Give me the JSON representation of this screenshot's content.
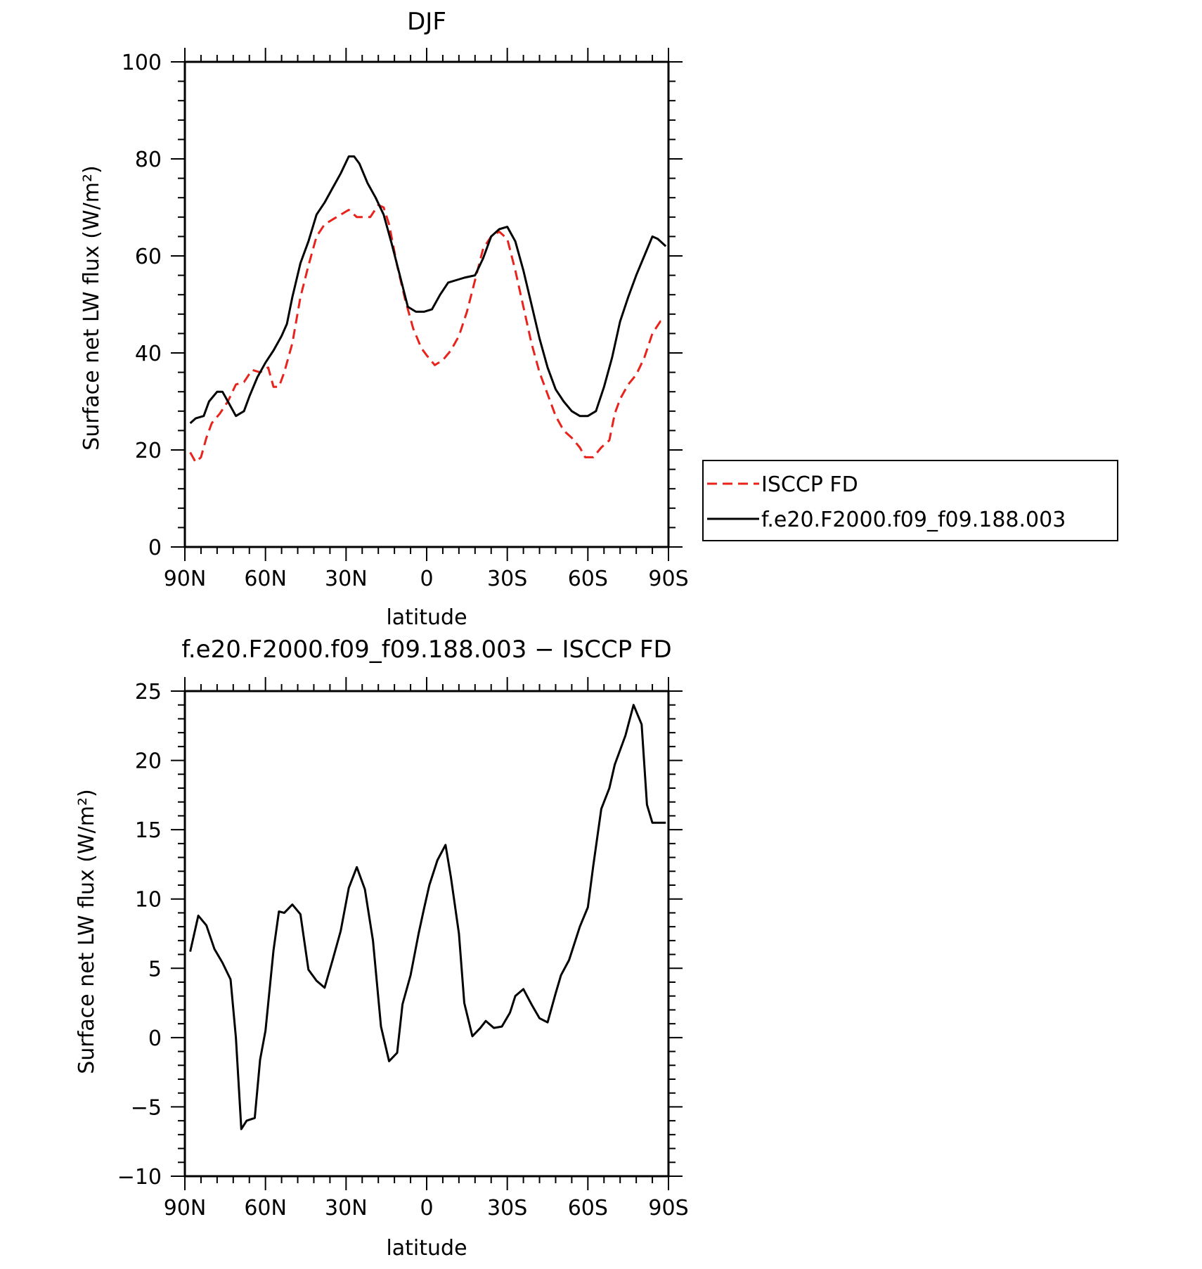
{
  "chart_data": [
    {
      "type": "line",
      "title": "DJF",
      "xlabel": "latitude",
      "ylabel": "Surface net LW flux (W/m²)",
      "xlim": [
        90,
        -90
      ],
      "ylim": [
        0,
        100
      ],
      "xticks": [
        90,
        60,
        30,
        0,
        -30,
        -60,
        -90
      ],
      "xtick_labels": [
        "90N",
        "60N",
        "30N",
        "0",
        "30S",
        "60S",
        "90S"
      ],
      "yticks": [
        0,
        20,
        40,
        60,
        80,
        100
      ],
      "ytick_labels": [
        "0",
        "20",
        "40",
        "60",
        "80",
        "100"
      ],
      "grid": false,
      "legend_position": "right",
      "series": [
        {
          "name": "ISCCP FD",
          "color": "#e8231c",
          "dash": "dashed",
          "x": [
            88,
            86,
            84,
            82,
            80,
            77,
            74,
            71,
            68,
            65,
            62,
            59,
            57,
            55,
            53,
            50,
            47,
            44,
            41,
            38,
            35,
            32,
            29,
            26,
            24,
            21,
            18,
            16,
            14,
            11,
            8,
            5,
            2,
            0,
            -3,
            -6,
            -9,
            -12,
            -15,
            -18,
            -21,
            -24,
            -27,
            -30,
            -33,
            -36,
            -39,
            -42,
            -45,
            -48,
            -51,
            -54,
            -57,
            -59,
            -60,
            -62,
            -65,
            -68,
            -70,
            -72,
            -75,
            -78,
            -81,
            -84,
            -87,
            -89
          ],
          "y": [
            19.5,
            17.5,
            18.5,
            22.5,
            25.5,
            27.5,
            30.0,
            33.5,
            34.0,
            36.5,
            36.0,
            37.0,
            33.0,
            33.0,
            36.0,
            42.0,
            51.5,
            58.0,
            64.0,
            66.5,
            67.5,
            68.5,
            69.5,
            68.0,
            68.0,
            68.0,
            70.5,
            70.0,
            66.5,
            58.0,
            51.0,
            45.0,
            41.0,
            39.5,
            37.5,
            38.5,
            40.5,
            43.5,
            48.5,
            55.0,
            61.5,
            64.0,
            65.0,
            63.5,
            57.0,
            49.5,
            42.0,
            36.0,
            31.5,
            27.0,
            24.0,
            22.5,
            20.5,
            18.5,
            18.5,
            18.5,
            20.5,
            22.0,
            27.5,
            30.5,
            33.5,
            35.5,
            39.0,
            44.0,
            46.5,
            46.5
          ]
        },
        {
          "name": "f.e20.F2000.f09_f09.188.003",
          "color": "#000000",
          "dash": "solid",
          "x": [
            88,
            86,
            83,
            81,
            78,
            76,
            74,
            71,
            68,
            66,
            63,
            60,
            57,
            54,
            52,
            50,
            47,
            44,
            41,
            38,
            35,
            32,
            29,
            27,
            25,
            22,
            19,
            16,
            13,
            10,
            7,
            4,
            1,
            -2,
            -5,
            -8,
            -11,
            -14,
            -18,
            -21,
            -24,
            -27,
            -30,
            -33,
            -36,
            -39,
            -42,
            -45,
            -48,
            -51,
            -54,
            -57,
            -60,
            -63,
            -66,
            -69,
            -72,
            -75,
            -78,
            -81,
            -84,
            -86,
            -89
          ],
          "y": [
            25.5,
            26.5,
            27.0,
            30.0,
            32.0,
            32.0,
            30.0,
            27.0,
            28.0,
            31.0,
            35.0,
            38.0,
            40.5,
            43.5,
            46.0,
            51.5,
            58.5,
            63.0,
            68.5,
            71.0,
            74.0,
            77.0,
            80.5,
            80.5,
            79.0,
            75.0,
            72.0,
            68.5,
            62.5,
            56.0,
            49.5,
            48.5,
            48.5,
            49.0,
            52.0,
            54.5,
            55.0,
            55.5,
            56.0,
            59.5,
            64.0,
            65.5,
            66.0,
            63.0,
            57.0,
            50.0,
            43.0,
            37.0,
            32.5,
            30.0,
            28.0,
            27.0,
            27.0,
            28.0,
            33.0,
            39.0,
            46.5,
            51.5,
            56.0,
            60.0,
            64.0,
            63.5,
            62.0
          ]
        }
      ]
    },
    {
      "type": "line",
      "title": "f.e20.F2000.f09_f09.188.003 − ISCCP FD",
      "xlabel": "latitude",
      "ylabel": "Surface net LW flux (W/m²)",
      "xlim": [
        90,
        -90
      ],
      "ylim": [
        -10,
        25
      ],
      "xticks": [
        90,
        60,
        30,
        0,
        -30,
        -60,
        -90
      ],
      "xtick_labels": [
        "90N",
        "60N",
        "30N",
        "0",
        "30S",
        "60S",
        "90S"
      ],
      "yticks": [
        -10,
        -5,
        0,
        5,
        10,
        15,
        20,
        25
      ],
      "ytick_labels": [
        "−10",
        "−5",
        "0",
        "5",
        "10",
        "15",
        "20",
        "25"
      ],
      "grid": false,
      "series": [
        {
          "color": "#000000",
          "dash": "solid",
          "x": [
            88,
            85,
            82,
            79,
            76,
            73,
            71,
            69,
            67,
            64,
            62,
            60,
            57,
            55,
            53,
            50,
            47,
            44,
            41,
            38,
            35,
            32,
            29,
            26,
            23,
            20,
            17,
            14,
            11,
            9,
            6,
            3,
            1,
            -1,
            -4,
            -7,
            -9,
            -12,
            -14,
            -17,
            -20,
            -22,
            -25,
            -28,
            -31,
            -33,
            -36,
            -39,
            -42,
            -45,
            -48,
            -50,
            -53,
            -57,
            -60,
            -62,
            -65,
            -68,
            -70,
            -74,
            -77,
            -80,
            -82,
            -84,
            -86,
            -89
          ],
          "y": [
            6.2,
            8.8,
            8.1,
            6.4,
            5.4,
            4.2,
            0.0,
            -6.6,
            -6.0,
            -5.8,
            -1.6,
            0.5,
            6.3,
            9.1,
            9.0,
            9.6,
            8.9,
            4.9,
            4.1,
            3.6,
            5.6,
            7.7,
            10.8,
            12.3,
            10.7,
            7.0,
            0.8,
            -1.7,
            -1.1,
            2.4,
            4.5,
            7.5,
            9.3,
            11.0,
            12.8,
            13.9,
            11.6,
            7.5,
            2.5,
            0.1,
            0.7,
            1.2,
            0.7,
            0.8,
            1.8,
            3.0,
            3.5,
            2.4,
            1.4,
            1.1,
            3.2,
            4.5,
            5.6,
            8.0,
            9.4,
            12.4,
            16.5,
            18.0,
            19.7,
            21.8,
            24.0,
            22.6,
            16.8,
            15.5,
            15.5,
            15.5
          ]
        }
      ]
    }
  ]
}
